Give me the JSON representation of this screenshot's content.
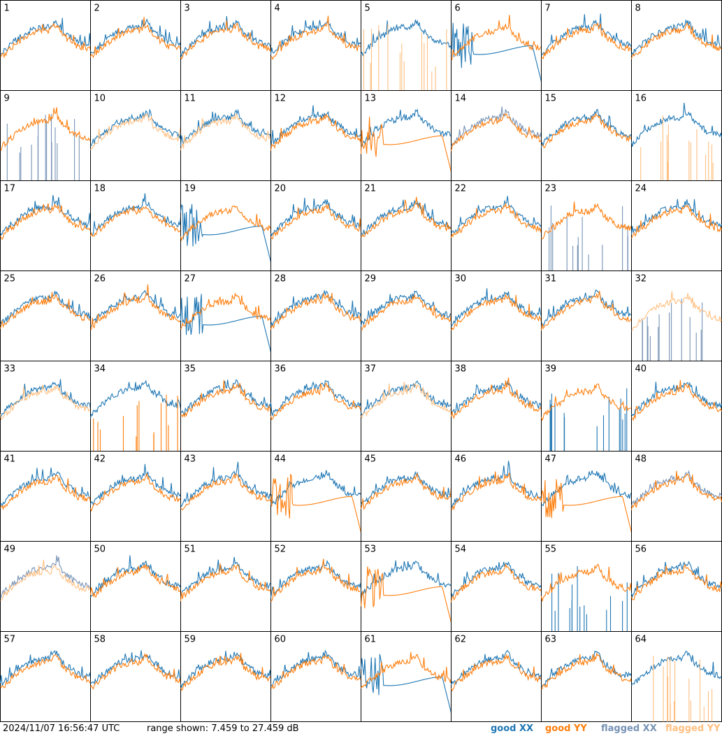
{
  "footer": {
    "timestamp": "2024/11/07 16:56:47 UTC",
    "range_text": "range shown: 7.459 to 27.459 dB",
    "legend": {
      "good_xx": "good XX",
      "good_yy": "good YY",
      "flagged_xx": "flagged XX",
      "flagged_yy": "flagged YY"
    }
  },
  "colors": {
    "good_xx": "#1f77b4",
    "good_yy": "#ff7f0e",
    "flagged_xx": "#7793b6",
    "flagged_yy": "#ffbf80"
  },
  "chart_data": {
    "type": "line",
    "title": "",
    "ylim": [
      7.459,
      27.459
    ],
    "units": "dB",
    "layout": "8x8 small multiples",
    "tiles": [
      {
        "label": "1",
        "xx": "good",
        "yy": "good",
        "xx_shape": "normal",
        "yy_shape": "normal"
      },
      {
        "label": "2",
        "xx": "good",
        "yy": "good",
        "xx_shape": "normal",
        "yy_shape": "normal"
      },
      {
        "label": "3",
        "xx": "good",
        "yy": "good",
        "xx_shape": "normal",
        "yy_shape": "normal"
      },
      {
        "label": "4",
        "xx": "good",
        "yy": "good",
        "xx_shape": "normal",
        "yy_shape": "normal"
      },
      {
        "label": "5",
        "xx": "good",
        "yy": "flagged",
        "xx_shape": "normal",
        "yy_shape": "spikes"
      },
      {
        "label": "6",
        "xx": "good",
        "yy": "good",
        "xx_shape": "decay",
        "yy_shape": "normal"
      },
      {
        "label": "7",
        "xx": "good",
        "yy": "good",
        "xx_shape": "normal",
        "yy_shape": "normal"
      },
      {
        "label": "8",
        "xx": "good",
        "yy": "good",
        "xx_shape": "normal",
        "yy_shape": "normal"
      },
      {
        "label": "9",
        "xx": "flagged",
        "yy": "good",
        "xx_shape": "spikes",
        "yy_shape": "normal"
      },
      {
        "label": "10",
        "xx": "good",
        "yy": "flagged",
        "xx_shape": "normal",
        "yy_shape": "normal"
      },
      {
        "label": "11",
        "xx": "good",
        "yy": "flagged",
        "xx_shape": "normal",
        "yy_shape": "normal"
      },
      {
        "label": "12",
        "xx": "good",
        "yy": "good",
        "xx_shape": "normal",
        "yy_shape": "normal"
      },
      {
        "label": "13",
        "xx": "good",
        "yy": "good",
        "xx_shape": "normal",
        "yy_shape": "decay"
      },
      {
        "label": "14",
        "xx": "flagged",
        "yy": "good",
        "xx_shape": "normal",
        "yy_shape": "normal"
      },
      {
        "label": "15",
        "xx": "good",
        "yy": "good",
        "xx_shape": "normal",
        "yy_shape": "normal"
      },
      {
        "label": "16",
        "xx": "good",
        "yy": "flagged",
        "xx_shape": "normal",
        "yy_shape": "spikes"
      },
      {
        "label": "17",
        "xx": "good",
        "yy": "good",
        "xx_shape": "normal",
        "yy_shape": "normal"
      },
      {
        "label": "18",
        "xx": "good",
        "yy": "good",
        "xx_shape": "normal",
        "yy_shape": "normal"
      },
      {
        "label": "19",
        "xx": "good",
        "yy": "good",
        "xx_shape": "decay",
        "yy_shape": "normal"
      },
      {
        "label": "20",
        "xx": "good",
        "yy": "good",
        "xx_shape": "normal",
        "yy_shape": "normal"
      },
      {
        "label": "21",
        "xx": "good",
        "yy": "good",
        "xx_shape": "normal",
        "yy_shape": "normal"
      },
      {
        "label": "22",
        "xx": "good",
        "yy": "good",
        "xx_shape": "normal",
        "yy_shape": "normal"
      },
      {
        "label": "23",
        "xx": "flagged",
        "yy": "good",
        "xx_shape": "spikes",
        "yy_shape": "normal"
      },
      {
        "label": "24",
        "xx": "good",
        "yy": "good",
        "xx_shape": "normal",
        "yy_shape": "normal"
      },
      {
        "label": "25",
        "xx": "good",
        "yy": "good",
        "xx_shape": "normal",
        "yy_shape": "normal"
      },
      {
        "label": "26",
        "xx": "good",
        "yy": "good",
        "xx_shape": "normal",
        "yy_shape": "normal"
      },
      {
        "label": "27",
        "xx": "good",
        "yy": "good",
        "xx_shape": "decay",
        "yy_shape": "normal"
      },
      {
        "label": "28",
        "xx": "good",
        "yy": "good",
        "xx_shape": "normal",
        "yy_shape": "normal"
      },
      {
        "label": "29",
        "xx": "good",
        "yy": "good",
        "xx_shape": "normal",
        "yy_shape": "normal"
      },
      {
        "label": "30",
        "xx": "good",
        "yy": "good",
        "xx_shape": "normal",
        "yy_shape": "normal"
      },
      {
        "label": "31",
        "xx": "good",
        "yy": "good",
        "xx_shape": "normal",
        "yy_shape": "normal"
      },
      {
        "label": "32",
        "xx": "flagged",
        "yy": "flagged",
        "xx_shape": "spikes",
        "yy_shape": "normal"
      },
      {
        "label": "33",
        "xx": "good",
        "yy": "flagged",
        "xx_shape": "normal",
        "yy_shape": "normal"
      },
      {
        "label": "34",
        "xx": "good",
        "yy": "good",
        "xx_shape": "normal",
        "yy_shape": "spikes"
      },
      {
        "label": "35",
        "xx": "good",
        "yy": "good",
        "xx_shape": "normal",
        "yy_shape": "normal"
      },
      {
        "label": "36",
        "xx": "good",
        "yy": "good",
        "xx_shape": "normal",
        "yy_shape": "normal"
      },
      {
        "label": "37",
        "xx": "good",
        "yy": "flagged",
        "xx_shape": "normal",
        "yy_shape": "normal"
      },
      {
        "label": "38",
        "xx": "good",
        "yy": "good",
        "xx_shape": "normal",
        "yy_shape": "normal"
      },
      {
        "label": "39",
        "xx": "good",
        "yy": "good",
        "xx_shape": "spikes",
        "yy_shape": "normal"
      },
      {
        "label": "40",
        "xx": "good",
        "yy": "good",
        "xx_shape": "normal",
        "yy_shape": "normal"
      },
      {
        "label": "41",
        "xx": "good",
        "yy": "good",
        "xx_shape": "normal",
        "yy_shape": "normal"
      },
      {
        "label": "42",
        "xx": "good",
        "yy": "good",
        "xx_shape": "normal",
        "yy_shape": "normal"
      },
      {
        "label": "43",
        "xx": "good",
        "yy": "good",
        "xx_shape": "normal",
        "yy_shape": "normal"
      },
      {
        "label": "44",
        "xx": "good",
        "yy": "good",
        "xx_shape": "normal",
        "yy_shape": "decay"
      },
      {
        "label": "45",
        "xx": "good",
        "yy": "good",
        "xx_shape": "normal",
        "yy_shape": "normal"
      },
      {
        "label": "46",
        "xx": "good",
        "yy": "good",
        "xx_shape": "normal",
        "yy_shape": "normal"
      },
      {
        "label": "47",
        "xx": "good",
        "yy": "good",
        "xx_shape": "normal",
        "yy_shape": "decay"
      },
      {
        "label": "48",
        "xx": "flagged",
        "yy": "good",
        "xx_shape": "normal",
        "yy_shape": "normal"
      },
      {
        "label": "49",
        "xx": "flagged",
        "yy": "flagged",
        "xx_shape": "normal",
        "yy_shape": "normal"
      },
      {
        "label": "50",
        "xx": "good",
        "yy": "good",
        "xx_shape": "normal",
        "yy_shape": "normal"
      },
      {
        "label": "51",
        "xx": "good",
        "yy": "good",
        "xx_shape": "normal",
        "yy_shape": "normal"
      },
      {
        "label": "52",
        "xx": "good",
        "yy": "good",
        "xx_shape": "normal",
        "yy_shape": "normal"
      },
      {
        "label": "53",
        "xx": "good",
        "yy": "good",
        "xx_shape": "normal",
        "yy_shape": "decay"
      },
      {
        "label": "54",
        "xx": "good",
        "yy": "good",
        "xx_shape": "normal",
        "yy_shape": "normal"
      },
      {
        "label": "55",
        "xx": "good",
        "yy": "good",
        "xx_shape": "spikes",
        "yy_shape": "normal"
      },
      {
        "label": "56",
        "xx": "good",
        "yy": "good",
        "xx_shape": "normal",
        "yy_shape": "normal"
      },
      {
        "label": "57",
        "xx": "good",
        "yy": "good",
        "xx_shape": "normal",
        "yy_shape": "normal"
      },
      {
        "label": "58",
        "xx": "good",
        "yy": "good",
        "xx_shape": "normal",
        "yy_shape": "normal"
      },
      {
        "label": "59",
        "xx": "good",
        "yy": "good",
        "xx_shape": "normal",
        "yy_shape": "normal"
      },
      {
        "label": "60",
        "xx": "good",
        "yy": "good",
        "xx_shape": "normal",
        "yy_shape": "normal"
      },
      {
        "label": "61",
        "xx": "good",
        "yy": "good",
        "xx_shape": "decay",
        "yy_shape": "normal"
      },
      {
        "label": "62",
        "xx": "good",
        "yy": "good",
        "xx_shape": "normal",
        "yy_shape": "normal"
      },
      {
        "label": "63",
        "xx": "good",
        "yy": "good",
        "xx_shape": "normal",
        "yy_shape": "normal"
      },
      {
        "label": "64",
        "xx": "good",
        "yy": "flagged",
        "xx_shape": "normal",
        "yy_shape": "spikes"
      }
    ]
  }
}
